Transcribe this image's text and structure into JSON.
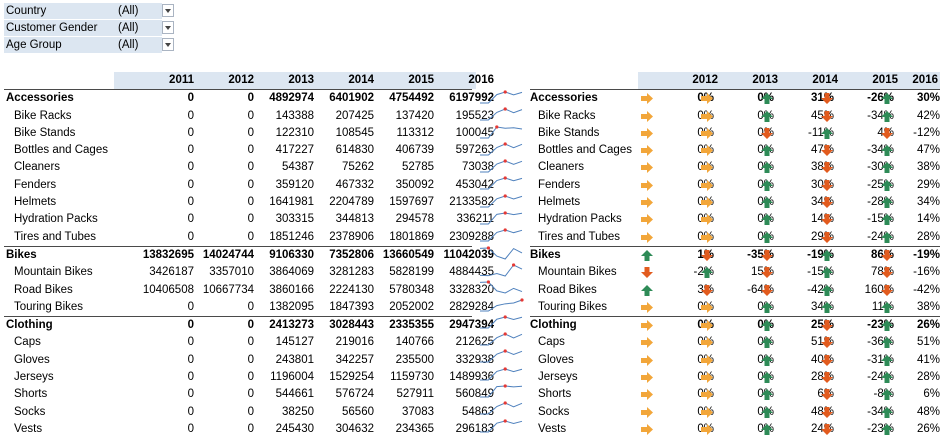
{
  "filters": [
    {
      "label": "Country",
      "value": "(All)"
    },
    {
      "label": "Customer Gender",
      "value": "(All)"
    },
    {
      "label": "Age Group",
      "value": "(All)"
    }
  ],
  "left_table": {
    "years": [
      "2011",
      "2012",
      "2013",
      "2014",
      "2015",
      "2016"
    ],
    "rows": [
      {
        "name": "Accessories",
        "group": true,
        "values": [
          "0",
          "0",
          "4892974",
          "6401902",
          "4754492",
          "6197992"
        ]
      },
      {
        "name": "Bike Racks",
        "values": [
          "0",
          "0",
          "143388",
          "207425",
          "137420",
          "195523"
        ]
      },
      {
        "name": "Bike Stands",
        "values": [
          "0",
          "0",
          "122310",
          "108545",
          "113312",
          "100045"
        ]
      },
      {
        "name": "Bottles and Cages",
        "values": [
          "0",
          "0",
          "417227",
          "614830",
          "406739",
          "597263"
        ]
      },
      {
        "name": "Cleaners",
        "values": [
          "0",
          "0",
          "54387",
          "75262",
          "52785",
          "73038"
        ]
      },
      {
        "name": "Fenders",
        "values": [
          "0",
          "0",
          "359120",
          "467332",
          "350092",
          "453042"
        ]
      },
      {
        "name": "Helmets",
        "values": [
          "0",
          "0",
          "1641981",
          "2204789",
          "1597697",
          "2133582"
        ]
      },
      {
        "name": "Hydration Packs",
        "values": [
          "0",
          "0",
          "303315",
          "344813",
          "294578",
          "336211"
        ]
      },
      {
        "name": "Tires and Tubes",
        "values": [
          "0",
          "0",
          "1851246",
          "2378906",
          "1801869",
          "2309288"
        ]
      },
      {
        "name": "Bikes",
        "group": true,
        "values": [
          "13832695",
          "14024744",
          "9106330",
          "7352806",
          "13660549",
          "11042039"
        ]
      },
      {
        "name": "Mountain Bikes",
        "values": [
          "3426187",
          "3357010",
          "3864069",
          "3281283",
          "5828199",
          "4884435"
        ]
      },
      {
        "name": "Road Bikes",
        "values": [
          "10406508",
          "10667734",
          "3860166",
          "2224130",
          "5780348",
          "3328320"
        ]
      },
      {
        "name": "Touring Bikes",
        "values": [
          "0",
          "0",
          "1382095",
          "1847393",
          "2052002",
          "2829284"
        ]
      },
      {
        "name": "Clothing",
        "group": true,
        "values": [
          "0",
          "0",
          "2413273",
          "3028443",
          "2335355",
          "2947394"
        ]
      },
      {
        "name": "Caps",
        "values": [
          "0",
          "0",
          "145127",
          "219016",
          "140766",
          "212625"
        ]
      },
      {
        "name": "Gloves",
        "values": [
          "0",
          "0",
          "243801",
          "342257",
          "235500",
          "332938"
        ]
      },
      {
        "name": "Jerseys",
        "values": [
          "0",
          "0",
          "1196004",
          "1529254",
          "1159730",
          "1489936"
        ]
      },
      {
        "name": "Shorts",
        "values": [
          "0",
          "0",
          "544661",
          "576724",
          "527911",
          "560849"
        ]
      },
      {
        "name": "Socks",
        "values": [
          "0",
          "0",
          "38250",
          "56560",
          "37083",
          "54863"
        ]
      },
      {
        "name": "Vests",
        "values": [
          "0",
          "0",
          "245430",
          "304632",
          "234365",
          "296183"
        ]
      }
    ]
  },
  "right_table": {
    "years": [
      "2012",
      "2013",
      "2014",
      "2015",
      "2016"
    ],
    "rows": [
      {
        "name": "Accessories",
        "group": true,
        "values": [
          "0%",
          "0%",
          "31%",
          "-26%",
          "30%"
        ]
      },
      {
        "name": "Bike Racks",
        "values": [
          "0%",
          "0%",
          "45%",
          "-34%",
          "42%"
        ]
      },
      {
        "name": "Bike Stands",
        "values": [
          "0%",
          "0%",
          "-11%",
          "4%",
          "-12%"
        ]
      },
      {
        "name": "Bottles and Cages",
        "values": [
          "0%",
          "0%",
          "47%",
          "-34%",
          "47%"
        ]
      },
      {
        "name": "Cleaners",
        "values": [
          "0%",
          "0%",
          "38%",
          "-30%",
          "38%"
        ]
      },
      {
        "name": "Fenders",
        "values": [
          "0%",
          "0%",
          "30%",
          "-25%",
          "29%"
        ]
      },
      {
        "name": "Helmets",
        "values": [
          "0%",
          "0%",
          "34%",
          "-28%",
          "34%"
        ]
      },
      {
        "name": "Hydration Packs",
        "values": [
          "0%",
          "0%",
          "14%",
          "-15%",
          "14%"
        ]
      },
      {
        "name": "Tires and Tubes",
        "values": [
          "0%",
          "0%",
          "29%",
          "-24%",
          "28%"
        ]
      },
      {
        "name": "Bikes",
        "group": true,
        "values": [
          "1%",
          "-35%",
          "-19%",
          "86%",
          "-19%"
        ]
      },
      {
        "name": "Mountain Bikes",
        "values": [
          "-2%",
          "15%",
          "-15%",
          "78%",
          "-16%"
        ]
      },
      {
        "name": "Road Bikes",
        "values": [
          "3%",
          "-64%",
          "-42%",
          "160%",
          "-42%"
        ]
      },
      {
        "name": "Touring Bikes",
        "values": [
          "0%",
          "0%",
          "34%",
          "11%",
          "38%"
        ]
      },
      {
        "name": "Clothing",
        "group": true,
        "values": [
          "0%",
          "0%",
          "25%",
          "-23%",
          "26%"
        ]
      },
      {
        "name": "Caps",
        "values": [
          "0%",
          "0%",
          "51%",
          "-36%",
          "51%"
        ]
      },
      {
        "name": "Gloves",
        "values": [
          "0%",
          "0%",
          "40%",
          "-31%",
          "41%"
        ]
      },
      {
        "name": "Jerseys",
        "values": [
          "0%",
          "0%",
          "28%",
          "-24%",
          "28%"
        ]
      },
      {
        "name": "Shorts",
        "values": [
          "0%",
          "0%",
          "6%",
          "-8%",
          "6%"
        ]
      },
      {
        "name": "Socks",
        "values": [
          "0%",
          "0%",
          "48%",
          "-34%",
          "48%"
        ]
      },
      {
        "name": "Vests",
        "values": [
          "0%",
          "0%",
          "24%",
          "-23%",
          "26%"
        ]
      }
    ]
  },
  "colors": {
    "header_fill": "#dce6f1",
    "spark_line": "#4f81bd",
    "spark_marker": "#e53935",
    "up_arrow": "#2e8b57",
    "down_arrow": "#e25b1e",
    "side_arrow": "#f2a63a"
  },
  "icons": {
    "up": "green-up-arrow-icon",
    "down": "red-down-arrow-icon",
    "side": "yellow-right-arrow-icon",
    "dropdown": "dropdown-arrow-icon"
  }
}
